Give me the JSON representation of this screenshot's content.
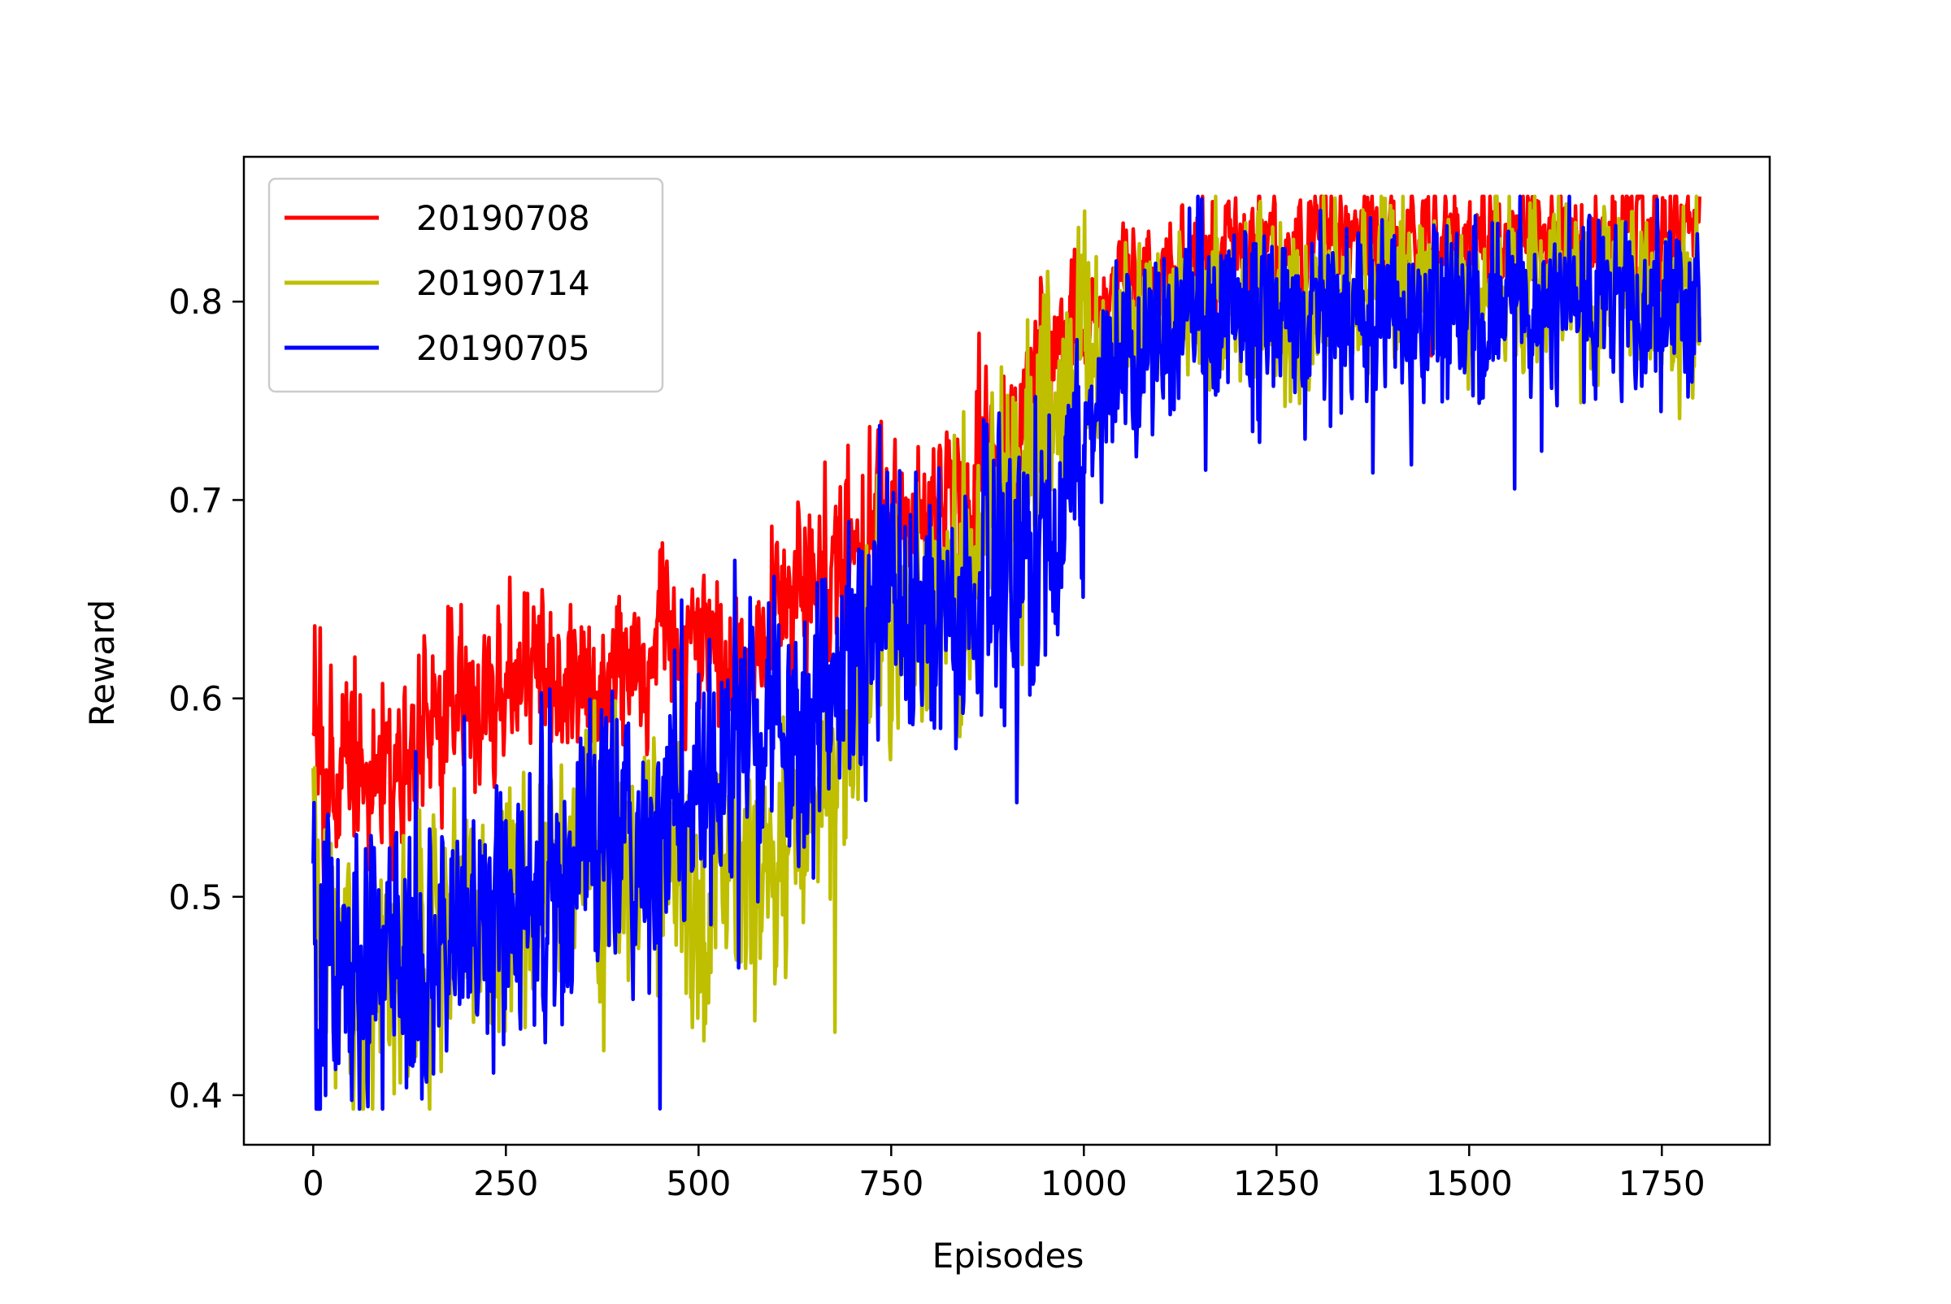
{
  "chart_data": {
    "type": "line",
    "title": "",
    "xlabel": "Episodes",
    "ylabel": "Reward",
    "xlim": [
      -90,
      1890
    ],
    "ylim": [
      0.375,
      0.873
    ],
    "x_ticks": [
      0,
      250,
      500,
      750,
      1000,
      1250,
      1500,
      1750
    ],
    "y_ticks": [
      0.4,
      0.5,
      0.6,
      0.7,
      0.8
    ],
    "x_tick_labels": [
      "0",
      "250",
      "500",
      "750",
      "1000",
      "1250",
      "1500",
      "1750"
    ],
    "y_tick_labels": [
      "0.4",
      "0.5",
      "0.6",
      "0.7",
      "0.8"
    ],
    "grid": false,
    "legend_position": "top-left",
    "n_points_per_series": 1800,
    "series": [
      {
        "name": "20190708",
        "color": "#ff0000",
        "anchors_x": [
          0,
          5,
          20,
          50,
          100,
          150,
          200,
          250,
          300,
          350,
          400,
          450,
          500,
          550,
          600,
          650,
          700,
          750,
          800,
          850,
          900,
          950,
          1000,
          1050,
          1100,
          1150,
          1200,
          1250,
          1300,
          1400,
          1500,
          1600,
          1700,
          1800
        ],
        "anchors_y": [
          0.59,
          0.56,
          0.545,
          0.575,
          0.56,
          0.58,
          0.605,
          0.6,
          0.61,
          0.605,
          0.615,
          0.625,
          0.625,
          0.61,
          0.645,
          0.655,
          0.67,
          0.69,
          0.705,
          0.71,
          0.725,
          0.765,
          0.785,
          0.81,
          0.815,
          0.82,
          0.825,
          0.83,
          0.832,
          0.833,
          0.832,
          0.834,
          0.833,
          0.832
        ],
        "noise": 0.014
      },
      {
        "name": "20190714",
        "color": "#bfbf00",
        "anchors_x": [
          0,
          5,
          20,
          50,
          100,
          150,
          200,
          250,
          300,
          350,
          400,
          450,
          500,
          550,
          600,
          650,
          700,
          750,
          800,
          850,
          900,
          950,
          1000,
          1050,
          1100,
          1150,
          1200,
          1250,
          1300,
          1400,
          1500,
          1600,
          1700,
          1800
        ],
        "anchors_y": [
          0.535,
          0.47,
          0.465,
          0.46,
          0.47,
          0.48,
          0.49,
          0.5,
          0.51,
          0.515,
          0.52,
          0.515,
          0.51,
          0.515,
          0.52,
          0.54,
          0.6,
          0.63,
          0.64,
          0.66,
          0.7,
          0.74,
          0.765,
          0.785,
          0.79,
          0.8,
          0.805,
          0.806,
          0.804,
          0.808,
          0.81,
          0.807,
          0.806,
          0.806
        ],
        "noise": 0.02
      },
      {
        "name": "20190705",
        "color": "#0000ff",
        "anchors_x": [
          0,
          5,
          20,
          50,
          100,
          150,
          200,
          250,
          300,
          350,
          400,
          450,
          500,
          550,
          600,
          650,
          700,
          750,
          800,
          850,
          900,
          950,
          1000,
          1050,
          1100,
          1150,
          1200,
          1250,
          1300,
          1400,
          1500,
          1600,
          1700,
          1800
        ],
        "anchors_y": [
          0.52,
          0.45,
          0.445,
          0.455,
          0.465,
          0.475,
          0.48,
          0.505,
          0.515,
          0.515,
          0.52,
          0.53,
          0.555,
          0.565,
          0.59,
          0.6,
          0.615,
          0.64,
          0.655,
          0.645,
          0.655,
          0.685,
          0.735,
          0.77,
          0.78,
          0.79,
          0.795,
          0.795,
          0.795,
          0.795,
          0.79,
          0.795,
          0.797,
          0.798
        ],
        "noise": 0.022
      }
    ]
  }
}
